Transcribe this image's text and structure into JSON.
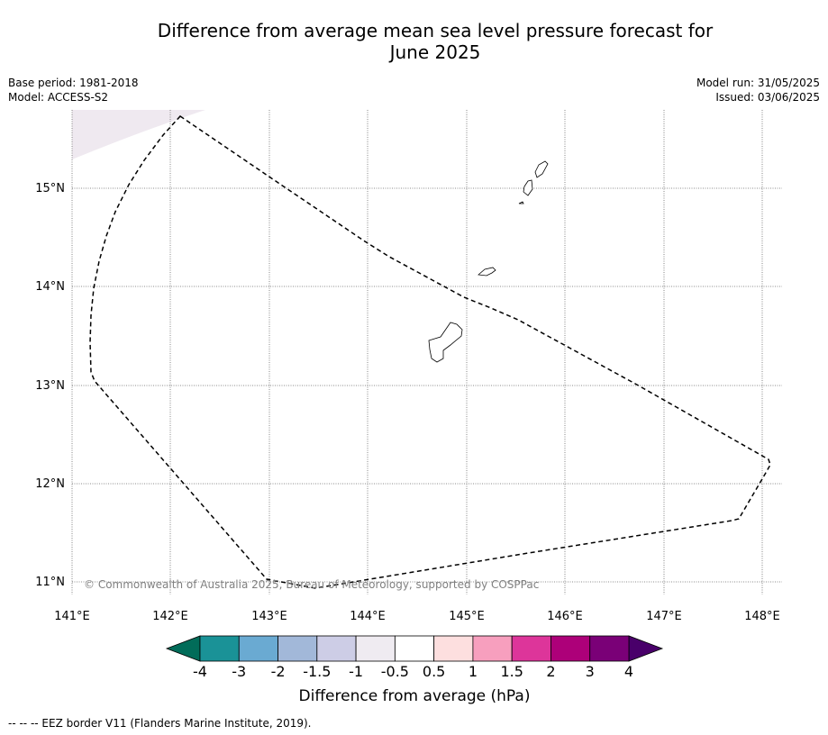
{
  "title_line1": "Difference from average mean sea level pressure forecast for",
  "title_line2": "June 2025",
  "meta_left": {
    "base_period": "Base period: 1981-2018",
    "model": "Model: ACCESS-S2"
  },
  "meta_right": {
    "model_run": "Model run: 31/05/2025",
    "issued": "Issued: 03/06/2025"
  },
  "map": {
    "lon_ticks": [
      "141°E",
      "142°E",
      "143°E",
      "144°E",
      "145°E",
      "146°E",
      "147°E",
      "148°E"
    ],
    "lat_ticks": [
      "15°N",
      "14°N",
      "13°N",
      "12°N",
      "11°N"
    ],
    "copyright": "© Commonwealth of Australia 2025, Bureau of Meteorology, supported by COSPPac",
    "shaded_region_color": "#efe9f0"
  },
  "colorbar": {
    "tick_labels": [
      "-4",
      "-3",
      "-2",
      "-1.5",
      "-1",
      "-0.5",
      "0.5",
      "1",
      "1.5",
      "2",
      "3",
      "4"
    ],
    "colors": [
      "#1a9297",
      "#6aaad2",
      "#a2b8d9",
      "#cdcde6",
      "#efebf1",
      "#ffffff",
      "#fddfdf",
      "#f79fbe",
      "#dd359a",
      "#ad0079",
      "#7a0077"
    ],
    "under_color": "#016c59",
    "over_color": "#49006a",
    "label": "Difference from average (hPa)"
  },
  "footer": "--  --  -- EEZ border V11 (Flanders Marine Institute, 2019)."
}
